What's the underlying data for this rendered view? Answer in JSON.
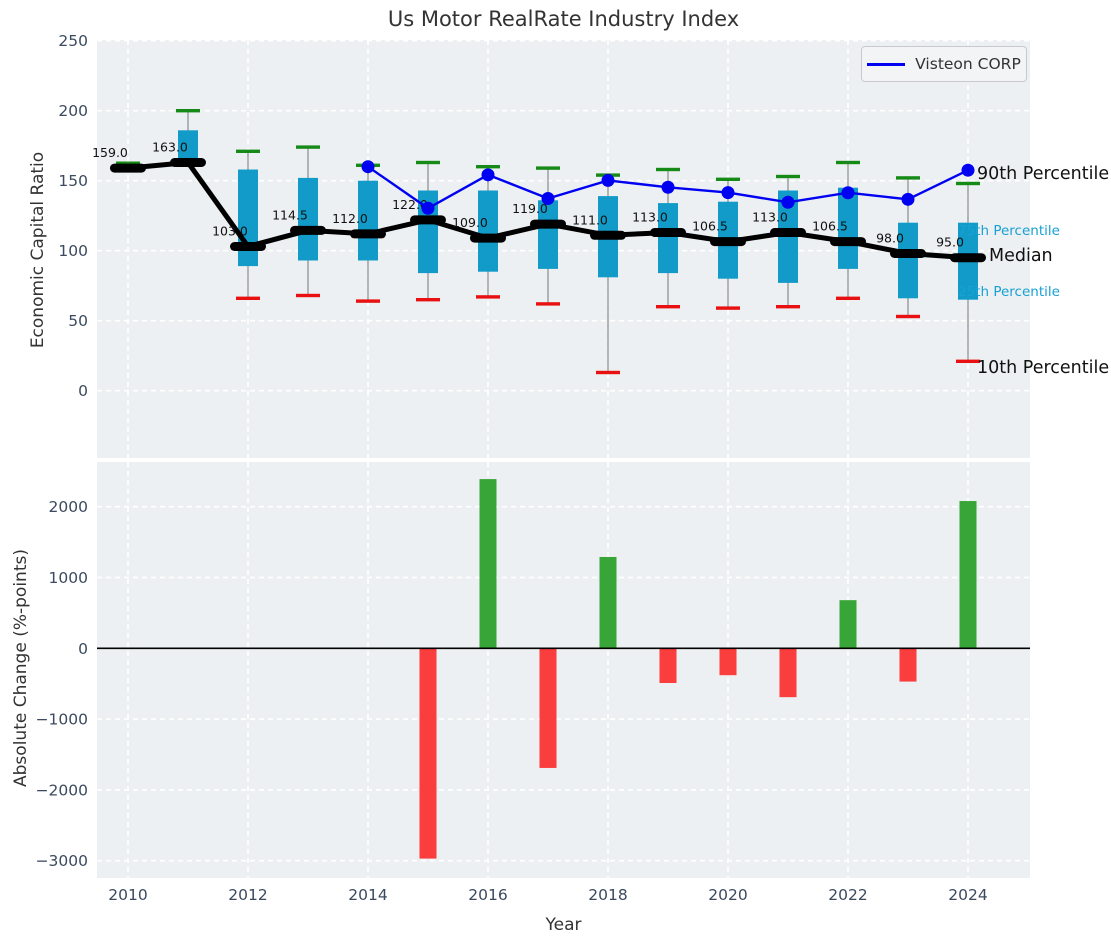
{
  "title": "Us Motor RealRate Industry Index",
  "legend": {
    "label": "Visteon CORP"
  },
  "axis_labels": {
    "top_y": "Economic Capital Ratio",
    "bottom_y": "Absolute Change (%-points)",
    "x": "Year"
  },
  "percentile_annotations": {
    "p90": "90th Percentile",
    "p75": "75th Percentile",
    "median": "Median",
    "p25": "25th Percentile",
    "p10": "10th Percentile"
  },
  "colors": {
    "panel_bg": "#edf0f2",
    "grid": "#ffffff",
    "tick_text": "#3b4a5e",
    "box": "#129bc9",
    "whisker": "#8a8a8a",
    "p90_dash": "#168a16",
    "p10_dash": "#e81010",
    "median": "#000000",
    "visteon_line": "#0101f2",
    "bar_positive": "#38a538",
    "bar_negative": "#fa3d3d",
    "cyan_label": "#17a1d4"
  },
  "chart_data": [
    {
      "type": "boxplot-line-combo",
      "title": "Us Motor RealRate Industry Index",
      "ylabel": "Economic Capital Ratio",
      "ylim": [
        -48,
        250
      ],
      "yticks": [
        250,
        200,
        150,
        100,
        50,
        0
      ],
      "xticks": [
        2010,
        2012,
        2014,
        2016,
        2018,
        2020,
        2022,
        2024
      ],
      "grid": true,
      "legend_position": "upper right",
      "years": [
        2010,
        2011,
        2012,
        2013,
        2014,
        2015,
        2016,
        2017,
        2018,
        2019,
        2020,
        2021,
        2022,
        2023,
        2024
      ],
      "p10": [
        158.5,
        162.5,
        66,
        68,
        64,
        65,
        67,
        62,
        13,
        60,
        59,
        60,
        66,
        53,
        21
      ],
      "p25": [
        158,
        164,
        89,
        93,
        93,
        84,
        85,
        87,
        81,
        84,
        80,
        77,
        87,
        66,
        65
      ],
      "median": [
        159,
        163,
        103,
        114.5,
        112,
        122,
        109,
        119,
        111,
        113,
        106.5,
        113,
        106.5,
        98,
        95
      ],
      "p75": [
        160.5,
        186,
        158,
        152,
        150,
        143,
        143,
        136,
        139,
        134,
        135,
        143,
        145,
        120,
        120
      ],
      "p90": [
        162.5,
        200,
        171,
        174,
        161,
        163,
        160,
        159,
        154,
        158,
        151,
        153,
        163,
        152,
        148
      ],
      "median_labels": [
        "159.0",
        "163.0",
        "103.0",
        "114.5",
        "112.0",
        "122.0",
        "109.0",
        "119.0",
        "111.0",
        "113.0",
        "106.5",
        "113.0",
        "106.5",
        "98.0",
        "95.0"
      ],
      "series": [
        {
          "name": "Visteon CORP",
          "start_year": 2014,
          "values": [
            160.0,
            130.3,
            154.2,
            137.3,
            150.2,
            145.3,
            141.5,
            134.6,
            141.4,
            136.7,
            157.5
          ]
        }
      ]
    },
    {
      "type": "bar",
      "ylabel": "Absolute Change (%-points)",
      "xlabel": "Year",
      "ylim": [
        -3250,
        2630
      ],
      "yticks": [
        2000,
        1000,
        0,
        -1000,
        -2000,
        -3000
      ],
      "xticks": [
        2010,
        2012,
        2014,
        2016,
        2018,
        2020,
        2022,
        2024
      ],
      "grid": true,
      "zero_line": true,
      "years": [
        2015,
        2016,
        2017,
        2018,
        2019,
        2020,
        2021,
        2022,
        2023,
        2024
      ],
      "values": [
        -2970,
        2390,
        -1690,
        1290,
        -490,
        -380,
        -690,
        680,
        -470,
        2080
      ]
    }
  ]
}
